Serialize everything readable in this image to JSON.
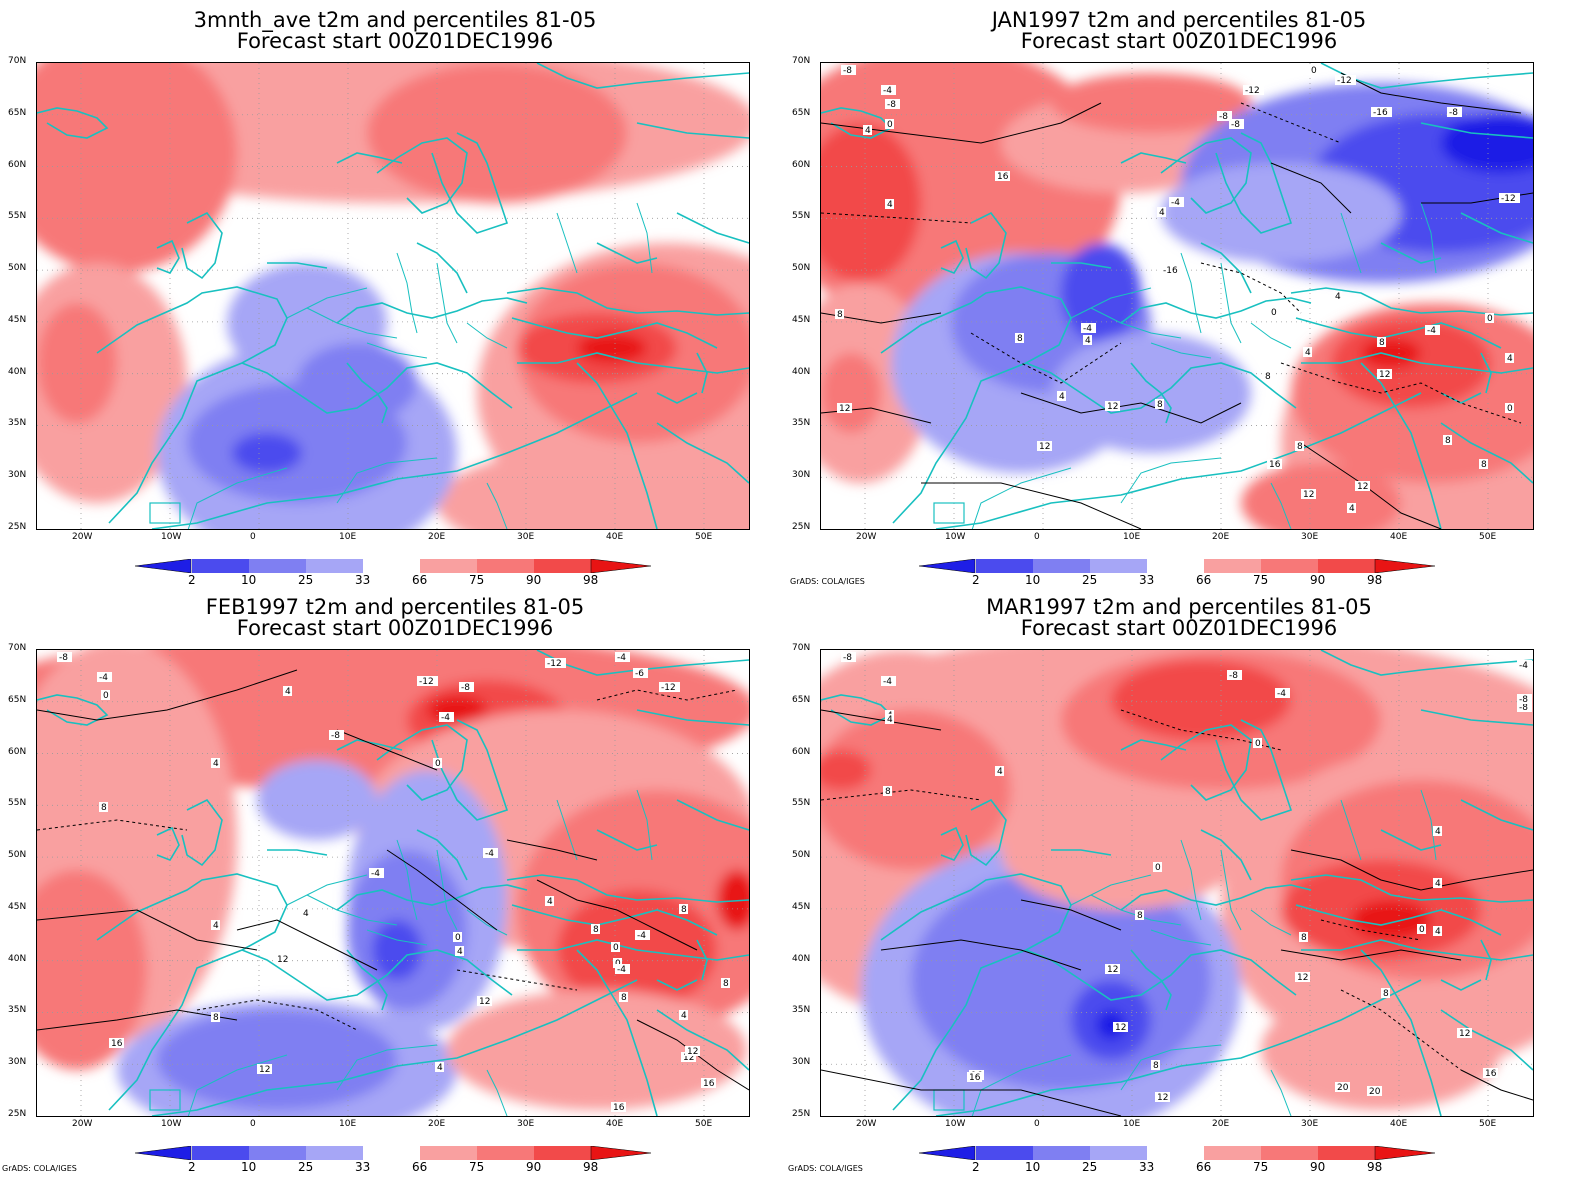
{
  "colors": {
    "coast": "#19c0c0",
    "blue_2": "#1e1ee6",
    "blue_10": "#4b4bee",
    "blue_25": "#7f7ff2",
    "blue_33": "#a6a6f6",
    "red_66": "#f9a0a0",
    "red_75": "#f77878",
    "red_90": "#f24a4a",
    "red_98": "#e81414",
    "contour": "#000000"
  },
  "colorbar": {
    "labels": [
      "2",
      "10",
      "25",
      "33",
      "66",
      "75",
      "90",
      "98"
    ]
  },
  "axes": {
    "lat_ticks": [
      "70N",
      "65N",
      "60N",
      "55N",
      "50N",
      "45N",
      "40N",
      "35N",
      "30N",
      "25N"
    ],
    "lon_ticks": [
      "20W",
      "10W",
      "0",
      "10E",
      "20E",
      "30E",
      "40E",
      "50E"
    ]
  },
  "credit": "GrADS: COLA/IGES",
  "panels": [
    {
      "title1": "3mnth_ave t2m and percentiles 81-05",
      "title2": "Forecast start 00Z01DEC1996",
      "has_contours": false,
      "show_credit": false
    },
    {
      "title1": "JAN1997 t2m and percentiles 81-05",
      "title2": "Forecast start 00Z01DEC1996",
      "has_contours": true,
      "show_credit": true
    },
    {
      "title1": "FEB1997 t2m and percentiles 81-05",
      "title2": "Forecast start 00Z01DEC1996",
      "has_contours": true,
      "show_credit": true
    },
    {
      "title1": "MAR1997 t2m and percentiles 81-05",
      "title2": "Forecast start 00Z01DEC1996",
      "has_contours": true,
      "show_credit": true
    }
  ],
  "contour_labels": [
    [],
    [
      "-8",
      "-4",
      "-8",
      "4",
      "0",
      "4",
      "8",
      "12",
      "16",
      "4",
      "0",
      "-12",
      "-16",
      "-12",
      "-8",
      "-8",
      "-12",
      "-16",
      "-4",
      "0",
      "-4",
      "4",
      "8",
      "4",
      "12",
      "8",
      "12",
      "4",
      "8",
      "-4",
      "0",
      "4",
      "8",
      "12",
      "16",
      "8",
      "12",
      "4",
      "8",
      "0",
      "4",
      "8",
      "12",
      "-8"
    ],
    [
      "-8",
      "-4",
      "0",
      "4",
      "8",
      "4",
      "16",
      "12",
      "8",
      "12",
      "-12",
      "-8",
      "-4",
      "-8",
      "0",
      "-4",
      "4",
      "-4",
      "4",
      "0",
      "4",
      "12",
      "-12",
      "-6",
      "-12",
      "-4",
      "4",
      "8",
      "-4",
      "0",
      "8",
      "0",
      "4",
      "-4",
      "8",
      "12",
      "16",
      "16",
      "12",
      "4",
      "8"
    ],
    [
      "-8",
      "-4",
      "4",
      "4",
      "4",
      "8",
      "16",
      "12",
      "12",
      "8",
      "12",
      "-8",
      "-4",
      "0",
      "0",
      "4",
      "8",
      "8",
      "0",
      "4",
      "4",
      "12",
      "-8",
      "16",
      "20",
      "20",
      "8",
      "-4",
      "16",
      "12",
      "-8"
    ]
  ]
}
